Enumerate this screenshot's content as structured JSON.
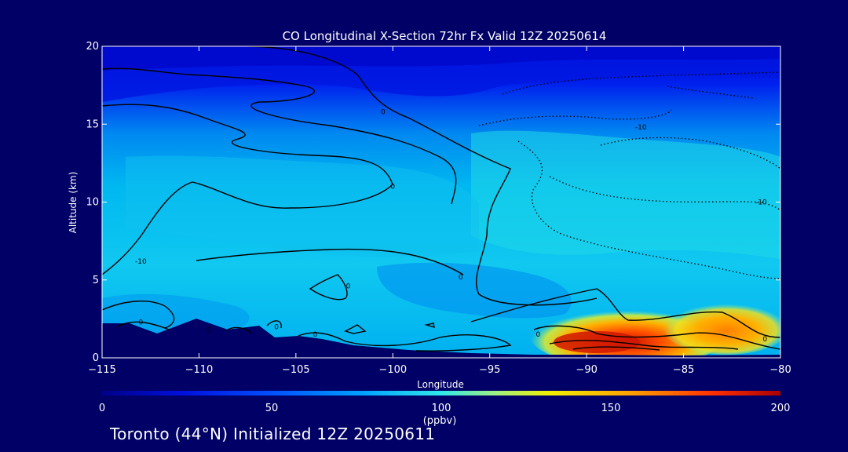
{
  "chart_data": {
    "type": "heatmap",
    "title": "CO Longitudinal X-Section 72hr  Fx Valid 12Z 20250614",
    "xlabel": "Longitude",
    "ylabel": "Altitude (km)",
    "xlim": [
      -115,
      -80
    ],
    "ylim": [
      0,
      20
    ],
    "x_ticks": [
      -115,
      -110,
      -105,
      -100,
      -95,
      -90,
      -85,
      -80
    ],
    "x_tick_labels": [
      "−115",
      "−110",
      "−105",
      "−100",
      "−95",
      "−90",
      "−85",
      "−80"
    ],
    "y_ticks": [
      0,
      5,
      10,
      15,
      20
    ],
    "y_tick_labels": [
      "0",
      "5",
      "10",
      "15",
      "20"
    ],
    "colorbar": {
      "min": 0,
      "max": 200,
      "ticks": [
        0,
        50,
        100,
        150,
        200
      ],
      "tick_labels": [
        "0",
        "50",
        "100",
        "150",
        "200"
      ],
      "unit_label": "(ppbv)"
    },
    "colors": {
      "background": "#000066",
      "co_0": "#0000cc",
      "co_50": "#0090f0",
      "co_100": "#22e0e0",
      "co_150": "#ffb000",
      "co_200": "#cc0000",
      "terrain": "#000066"
    },
    "co_field": {
      "longitudes": [
        -115,
        -110,
        -105,
        -100,
        -95,
        -90,
        -85,
        -80
      ],
      "altitudes_km": [
        0,
        2,
        4,
        6,
        8,
        10,
        12,
        14,
        16,
        18,
        20
      ],
      "values_ppbv": [
        [
          70,
          75,
          85,
          90,
          95,
          140,
          150,
          145
        ],
        [
          70,
          75,
          82,
          88,
          90,
          160,
          165,
          160
        ],
        [
          72,
          76,
          80,
          82,
          85,
          88,
          90,
          88
        ],
        [
          72,
          74,
          78,
          80,
          84,
          85,
          86,
          84
        ],
        [
          70,
          72,
          76,
          78,
          82,
          84,
          84,
          82
        ],
        [
          68,
          70,
          74,
          76,
          82,
          84,
          84,
          82
        ],
        [
          66,
          68,
          70,
          72,
          80,
          82,
          80,
          78
        ],
        [
          55,
          58,
          60,
          62,
          70,
          74,
          74,
          72
        ],
        [
          35,
          38,
          40,
          45,
          55,
          60,
          60,
          58
        ],
        [
          20,
          22,
          25,
          28,
          32,
          36,
          36,
          34
        ],
        [
          15,
          15,
          18,
          20,
          22,
          25,
          25,
          25
        ]
      ]
    },
    "contour_labels": [
      {
        "text": "0",
        "lon": -100.5,
        "alt_km": 15.8
      },
      {
        "text": "0",
        "lon": -100.0,
        "alt_km": 11.0
      },
      {
        "text": "-10",
        "lon": -113.0,
        "alt_km": 6.2
      },
      {
        "text": "0",
        "lon": -102.3,
        "alt_km": 4.6
      },
      {
        "text": "0",
        "lon": -96.5,
        "alt_km": 5.2
      },
      {
        "text": "0",
        "lon": -113.0,
        "alt_km": 2.3
      },
      {
        "text": "0",
        "lon": -109.5,
        "alt_km": 1.8
      },
      {
        "text": "0",
        "lon": -106.0,
        "alt_km": 2.0
      },
      {
        "text": "0",
        "lon": -104.0,
        "alt_km": 1.5
      },
      {
        "text": "0",
        "lon": -92.5,
        "alt_km": 1.5
      },
      {
        "text": "0",
        "lon": -80.8,
        "alt_km": 1.2
      },
      {
        "text": "-10",
        "lon": -87.2,
        "alt_km": 14.8
      },
      {
        "text": "-10",
        "lon": -81.0,
        "alt_km": 10.0
      }
    ],
    "grid": false,
    "legend": "colorbar-bottom"
  },
  "footer": {
    "text": "Toronto (44°N) Initialized 12Z 20250611"
  }
}
